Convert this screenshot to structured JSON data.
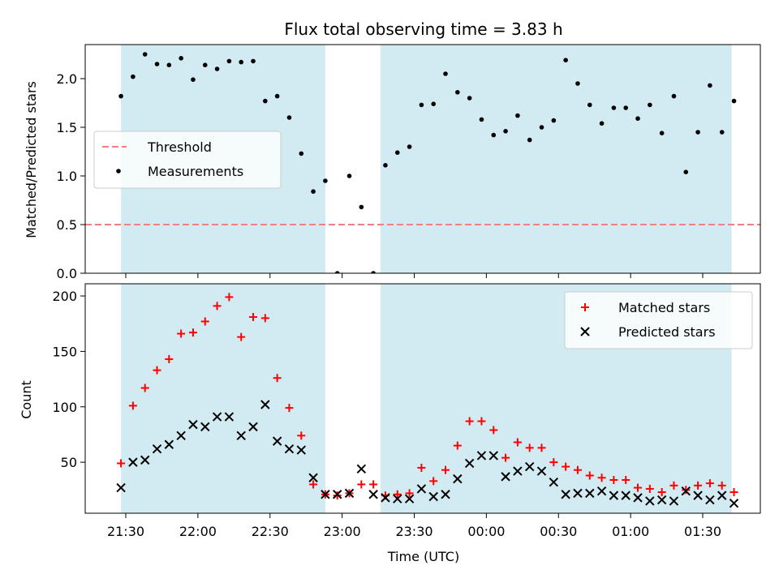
{
  "chart_data": {
    "title": "Flux total observing time = 3.83 h",
    "xlabel": "Time (UTC)",
    "x_ticks": [
      "21:30",
      "22:00",
      "22:30",
      "23:00",
      "23:30",
      "00:00",
      "00:30",
      "01:00",
      "01:30"
    ],
    "shaded_intervals": [
      [
        "21:28",
        "22:53"
      ],
      [
        "23:16",
        "01:42"
      ]
    ],
    "shade_color": "#add8e6",
    "panels": [
      {
        "type": "scatter",
        "ylabel": "Matched/Predicted stars",
        "ylim": [
          0,
          2.35
        ],
        "y_ticks": [
          "0.0",
          "0.5",
          "1.0",
          "1.5",
          "2.0"
        ],
        "legend_position": "center-left",
        "threshold": {
          "name": "Threshold",
          "value": 0.5,
          "color": "#f08080"
        },
        "series": [
          {
            "name": "Measurements",
            "color": "#000000",
            "marker": "dot",
            "points": [
              [
                "21:28",
                1.82
              ],
              [
                "21:33",
                2.02
              ],
              [
                "21:38",
                2.25
              ],
              [
                "21:43",
                2.15
              ],
              [
                "21:48",
                2.14
              ],
              [
                "21:53",
                2.21
              ],
              [
                "21:58",
                1.99
              ],
              [
                "22:03",
                2.14
              ],
              [
                "22:08",
                2.1
              ],
              [
                "22:13",
                2.18
              ],
              [
                "22:18",
                2.17
              ],
              [
                "22:23",
                2.18
              ],
              [
                "22:28",
                1.77
              ],
              [
                "22:33",
                1.82
              ],
              [
                "22:38",
                1.6
              ],
              [
                "22:43",
                1.23
              ],
              [
                "22:48",
                0.84
              ],
              [
                "22:53",
                0.95
              ],
              [
                "22:58",
                0.0
              ],
              [
                "23:03",
                1.0
              ],
              [
                "23:08",
                0.68
              ],
              [
                "23:13",
                0.0
              ],
              [
                "23:18",
                1.11
              ],
              [
                "23:23",
                1.24
              ],
              [
                "23:28",
                1.3
              ],
              [
                "23:33",
                1.73
              ],
              [
                "23:38",
                1.74
              ],
              [
                "23:43",
                2.05
              ],
              [
                "23:48",
                1.86
              ],
              [
                "23:53",
                1.8
              ],
              [
                "23:58",
                1.58
              ],
              [
                "00:03",
                1.42
              ],
              [
                "00:08",
                1.46
              ],
              [
                "00:13",
                1.62
              ],
              [
                "00:18",
                1.37
              ],
              [
                "00:23",
                1.5
              ],
              [
                "00:28",
                1.57
              ],
              [
                "00:33",
                2.19
              ],
              [
                "00:38",
                1.95
              ],
              [
                "00:43",
                1.73
              ],
              [
                "00:48",
                1.54
              ],
              [
                "00:53",
                1.7
              ],
              [
                "00:58",
                1.7
              ],
              [
                "01:03",
                1.59
              ],
              [
                "01:08",
                1.73
              ],
              [
                "01:13",
                1.44
              ],
              [
                "01:18",
                1.82
              ],
              [
                "01:23",
                1.04
              ],
              [
                "01:28",
                1.45
              ],
              [
                "01:33",
                1.93
              ],
              [
                "01:38",
                1.45
              ],
              [
                "01:43",
                1.77
              ]
            ]
          }
        ]
      },
      {
        "type": "scatter",
        "ylabel": "Count",
        "ylim": [
          4,
          211
        ],
        "y_ticks": [
          "50",
          "100",
          "150",
          "200"
        ],
        "legend_position": "top-right",
        "series": [
          {
            "name": "Matched stars",
            "color": "#ff0000",
            "marker": "plus",
            "points": [
              [
                "21:28",
                49
              ],
              [
                "21:33",
                101
              ],
              [
                "21:38",
                117
              ],
              [
                "21:43",
                133
              ],
              [
                "21:48",
                143
              ],
              [
                "21:53",
                166
              ],
              [
                "21:58",
                167
              ],
              [
                "22:03",
                177
              ],
              [
                "22:08",
                191
              ],
              [
                "22:13",
                199
              ],
              [
                "22:18",
                163
              ],
              [
                "22:23",
                181
              ],
              [
                "22:28",
                180
              ],
              [
                "22:33",
                126
              ],
              [
                "22:38",
                99
              ],
              [
                "22:43",
                74
              ],
              [
                "22:48",
                30
              ],
              [
                "22:53",
                21
              ],
              [
                "22:58",
                20
              ],
              [
                "23:03",
                22
              ],
              [
                "23:08",
                30
              ],
              [
                "23:13",
                30
              ],
              [
                "23:18",
                20
              ],
              [
                "23:23",
                21
              ],
              [
                "23:28",
                22
              ],
              [
                "23:33",
                45
              ],
              [
                "23:38",
                33
              ],
              [
                "23:43",
                43
              ],
              [
                "23:48",
                65
              ],
              [
                "23:53",
                87
              ],
              [
                "23:58",
                87
              ],
              [
                "00:03",
                79
              ],
              [
                "00:08",
                54
              ],
              [
                "00:13",
                68
              ],
              [
                "00:18",
                63
              ],
              [
                "00:23",
                63
              ],
              [
                "00:28",
                50
              ],
              [
                "00:33",
                46
              ],
              [
                "00:38",
                43
              ],
              [
                "00:43",
                38
              ],
              [
                "00:48",
                36
              ],
              [
                "00:53",
                34
              ],
              [
                "00:58",
                34
              ],
              [
                "01:03",
                27
              ],
              [
                "01:08",
                26
              ],
              [
                "01:13",
                23
              ],
              [
                "01:18",
                29
              ],
              [
                "01:23",
                25
              ],
              [
                "01:28",
                29
              ],
              [
                "01:33",
                31
              ],
              [
                "01:38",
                29
              ],
              [
                "01:43",
                23
              ]
            ]
          },
          {
            "name": "Predicted stars",
            "color": "#000000",
            "marker": "x",
            "points": [
              [
                "21:28",
                27
              ],
              [
                "21:33",
                50
              ],
              [
                "21:38",
                52
              ],
              [
                "21:43",
                62
              ],
              [
                "21:48",
                66
              ],
              [
                "21:53",
                74
              ],
              [
                "21:58",
                84
              ],
              [
                "22:03",
                82
              ],
              [
                "22:08",
                91
              ],
              [
                "22:13",
                91
              ],
              [
                "22:18",
                74
              ],
              [
                "22:23",
                82
              ],
              [
                "22:28",
                102
              ],
              [
                "22:33",
                69
              ],
              [
                "22:38",
                62
              ],
              [
                "22:43",
                61
              ],
              [
                "22:48",
                36
              ],
              [
                "22:53",
                21
              ],
              [
                "22:58",
                21
              ],
              [
                "23:03",
                22
              ],
              [
                "23:08",
                44
              ],
              [
                "23:13",
                21
              ],
              [
                "23:18",
                18
              ],
              [
                "23:23",
                17
              ],
              [
                "23:28",
                17
              ],
              [
                "23:33",
                26
              ],
              [
                "23:38",
                19
              ],
              [
                "23:43",
                21
              ],
              [
                "23:48",
                35
              ],
              [
                "23:53",
                49
              ],
              [
                "23:58",
                56
              ],
              [
                "00:03",
                56
              ],
              [
                "00:08",
                37
              ],
              [
                "00:13",
                42
              ],
              [
                "00:18",
                46
              ],
              [
                "00:23",
                42
              ],
              [
                "00:28",
                32
              ],
              [
                "00:33",
                21
              ],
              [
                "00:38",
                22
              ],
              [
                "00:43",
                22
              ],
              [
                "00:48",
                24
              ],
              [
                "00:53",
                20
              ],
              [
                "00:58",
                20
              ],
              [
                "01:03",
                18
              ],
              [
                "01:08",
                15
              ],
              [
                "01:13",
                16
              ],
              [
                "01:18",
                15
              ],
              [
                "01:23",
                24
              ],
              [
                "01:28",
                20
              ],
              [
                "01:33",
                16
              ],
              [
                "01:38",
                20
              ],
              [
                "01:43",
                13
              ]
            ]
          }
        ]
      }
    ]
  }
}
